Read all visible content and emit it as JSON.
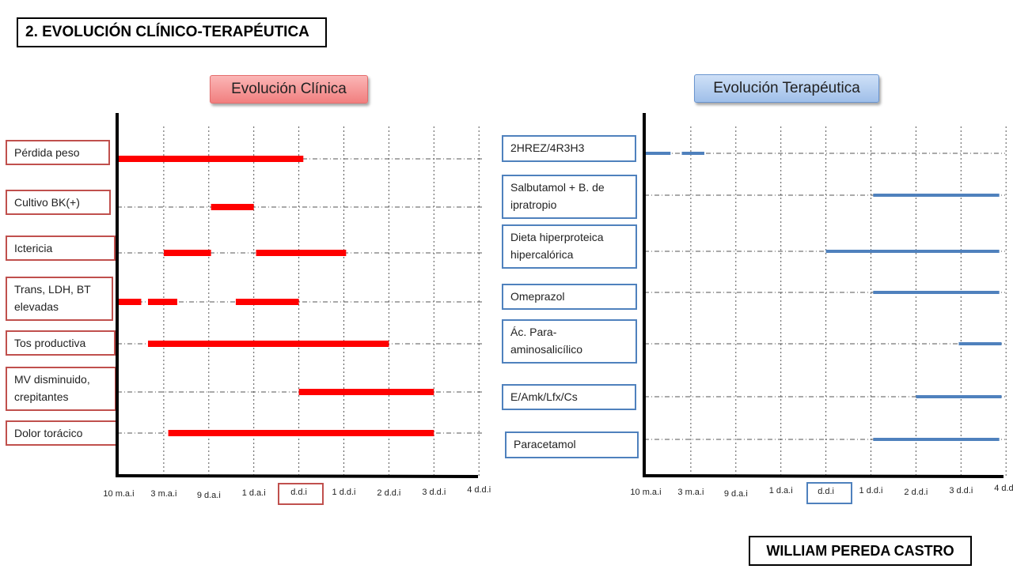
{
  "page": {
    "title": "2. EVOLUCIÓN CLÍNICO-TERAPÉUTICA",
    "author": "WILLIAM PEREDA CASTRO"
  },
  "chart_data": [
    {
      "type": "timeline",
      "title": "Evolución Clínica",
      "bar_color": "#ff0000",
      "ticks": [
        "10 m.a.i",
        "3 m.a.i",
        "9 d.a.i",
        "1 d.a.i",
        "d.d.i",
        "1 d.d.i",
        "2 d.d.i",
        "3 d.d.i",
        "4 d.d.i"
      ],
      "highlighted_tick": "d.d.i",
      "rows": [
        {
          "label": "Pérdida peso",
          "segments": [
            [
              0,
              4.1
            ]
          ]
        },
        {
          "label": "Cultivo BK(+)",
          "segments": [
            [
              2.05,
              3.0
            ]
          ]
        },
        {
          "label": "Ictericia",
          "segments": [
            [
              1.0,
              2.05
            ],
            [
              3.05,
              5.05
            ]
          ]
        },
        {
          "label": "Trans, LDH, BT elevadas",
          "segments": [
            [
              0,
              0.5
            ],
            [
              0.65,
              1.3
            ],
            [
              2.6,
              4.0
            ]
          ]
        },
        {
          "label": "Tos productiva",
          "segments": [
            [
              0.65,
              6.0
            ]
          ]
        },
        {
          "label": "MV disminuido, crepitantes",
          "segments": [
            [
              4.0,
              7.0
            ]
          ]
        },
        {
          "label": "Dolor torácico",
          "segments": [
            [
              1.1,
              7.0
            ]
          ]
        }
      ]
    },
    {
      "type": "timeline",
      "title": "Evolución Terapéutica",
      "bar_color": "#4f81bd",
      "ticks": [
        "10 m.a.i",
        "3 m.a.i",
        "9 d.a.i",
        "1 d.a.i",
        "d.d.i",
        "1 d.d.i",
        "2 d.d.i",
        "3 d.d.i",
        "4 d.d.i"
      ],
      "highlighted_tick": "d.d.i",
      "rows": [
        {
          "label": "2HREZ/4R3H3",
          "segments": [
            [
              0,
              0.55
            ],
            [
              0.8,
              1.3
            ]
          ]
        },
        {
          "label": "Salbutamol + B. de ipratropio",
          "segments": [
            [
              5.05,
              7.85
            ]
          ]
        },
        {
          "label": "Dieta hiperproteica hipercalórica",
          "segments": [
            [
              4.0,
              7.85
            ]
          ]
        },
        {
          "label": "Omeprazol",
          "segments": [
            [
              5.05,
              7.85
            ]
          ]
        },
        {
          "label": "Ác. Para-aminosalicílico",
          "segments": [
            [
              6.95,
              7.9
            ]
          ]
        },
        {
          "label": "E/Amk/Lfx/Cs",
          "segments": [
            [
              6.0,
              7.9
            ]
          ]
        },
        {
          "label": "Paracetamol",
          "segments": [
            [
              5.05,
              7.85
            ]
          ]
        }
      ]
    }
  ]
}
